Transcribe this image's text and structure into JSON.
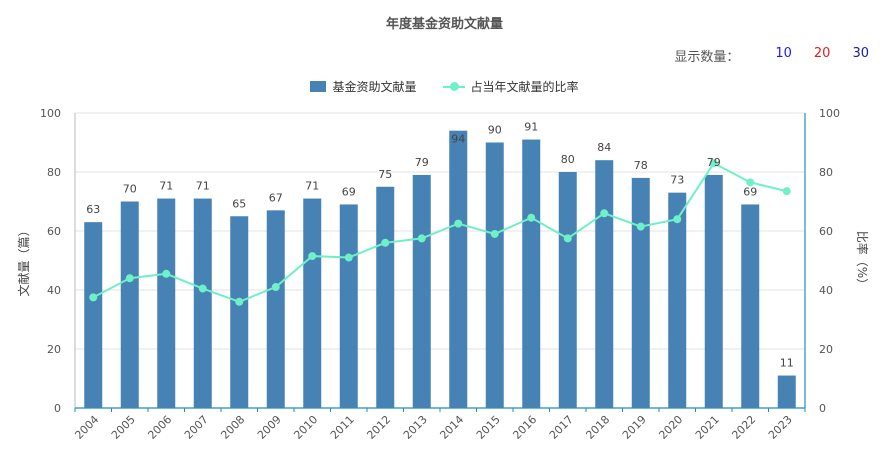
{
  "header": {
    "title": "年度基金资助文献量"
  },
  "count_selector": {
    "label": "显示数量：",
    "options": [
      {
        "label": "10",
        "color": "#1a1aff"
      },
      {
        "label": "20",
        "color": "#e02020"
      },
      {
        "label": "30",
        "color": "#1a1aa8"
      }
    ]
  },
  "colors": {
    "bar": "#4682b4",
    "line": "#6ff0c6",
    "axis_right": "#1f8fbf"
  },
  "chart_data": {
    "type": "bar",
    "title": "年度基金资助文献量",
    "categories": [
      "2004",
      "2005",
      "2006",
      "2007",
      "2008",
      "2009",
      "2010",
      "2011",
      "2012",
      "2013",
      "2014",
      "2015",
      "2016",
      "2017",
      "2018",
      "2019",
      "2020",
      "2021",
      "2022",
      "2023"
    ],
    "series": [
      {
        "name": "基金资助文献量",
        "type": "bar",
        "axis": "left",
        "values": [
          63,
          70,
          71,
          71,
          65,
          67,
          71,
          69,
          75,
          79,
          94,
          90,
          91,
          80,
          84,
          78,
          73,
          79,
          69,
          11
        ]
      },
      {
        "name": "占当年文献量的比率",
        "type": "line",
        "axis": "right",
        "values": [
          37.5,
          44,
          45.5,
          40.5,
          36,
          41,
          51.5,
          51,
          56,
          57.5,
          62.5,
          59,
          64.5,
          57.5,
          66,
          61.5,
          64,
          83,
          76.5,
          73.5
        ]
      }
    ],
    "ylabel": "文献量（篇）",
    "ylabel_right": "比率（%）",
    "ylim": [
      0,
      100
    ],
    "ylim_right": [
      0,
      100
    ],
    "yticks": [
      0,
      20,
      40,
      60,
      80,
      100
    ],
    "grid": true,
    "legend_position": "top-center"
  }
}
